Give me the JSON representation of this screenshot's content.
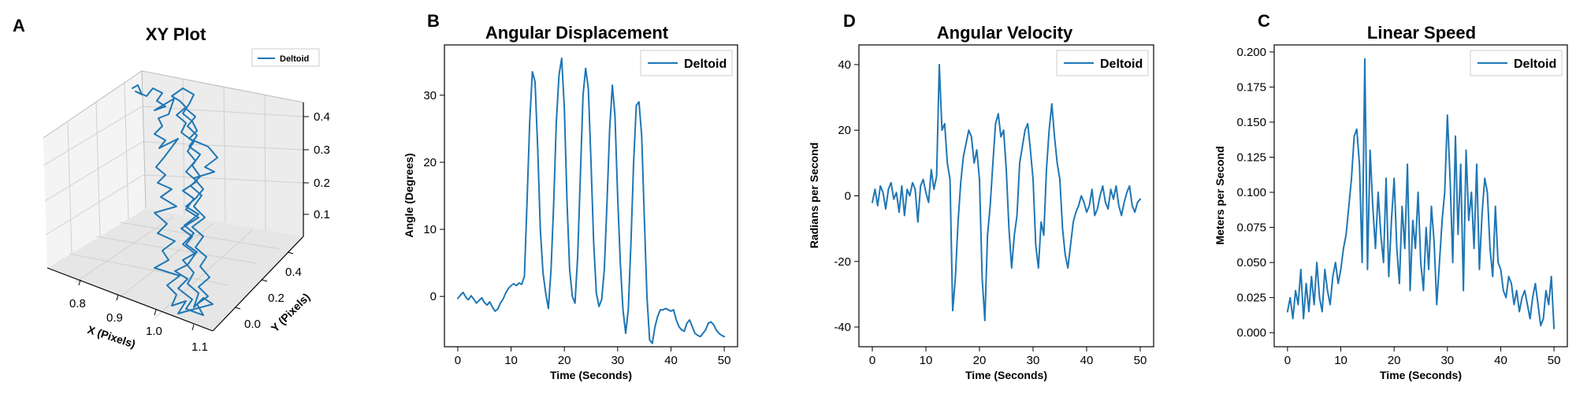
{
  "colors": {
    "series": "#1f77b4",
    "pane": "#f2f2f2",
    "grid": "#d6d6d6"
  },
  "panel_letters": {
    "a": "A",
    "b": "B",
    "c": "C",
    "d": "D"
  },
  "chart_data": [
    {
      "type": "scatter",
      "panel": "A",
      "title": "XY Plot",
      "projection": "3d",
      "xlabel": "X (Pixels)",
      "ylabel": "Y (Pixels)",
      "zlabel": "",
      "x_ticks": [
        "0.8",
        "0.9",
        "1.0",
        "1.1"
      ],
      "y_ticks": [
        "0.0",
        "0.2",
        "0.4"
      ],
      "z_ticks": [
        "0.1",
        "0.2",
        "0.3",
        "0.4"
      ],
      "xlim": [
        0.72,
        1.12
      ],
      "ylim": [
        -0.1,
        0.55
      ],
      "zlim": [
        0.0,
        0.45
      ],
      "legend": [
        "Deltoid"
      ],
      "legend_position": "top-right",
      "grid": true,
      "series": [
        {
          "name": "Deltoid",
          "path": "trajectory from z≈0.0 to z≈0.42, x≈0.95–1.08, y≈0.0–0.4"
        }
      ]
    },
    {
      "type": "line",
      "panel": "B",
      "title": "Angular Displacement",
      "xlabel": "Time (Seconds)",
      "ylabel": "Angle (Degrees)",
      "xlim": [
        -2.5,
        52.5
      ],
      "ylim": [
        -7.5,
        37.5
      ],
      "x_ticks": [
        0,
        10,
        20,
        30,
        40,
        50
      ],
      "y_ticks": [
        0,
        10,
        20,
        30
      ],
      "legend": [
        "Deltoid"
      ],
      "legend_position": "top-right",
      "grid": false,
      "series": [
        {
          "name": "Deltoid",
          "x": [
            0,
            0.5,
            1,
            1.5,
            2,
            2.5,
            3,
            3.5,
            4,
            4.5,
            5,
            5.5,
            6,
            6.5,
            7,
            7.5,
            8,
            8.5,
            9,
            9.5,
            10,
            10.5,
            11,
            11.5,
            12,
            12.5,
            13,
            13.5,
            14,
            14.5,
            15,
            15.5,
            16,
            16.5,
            17,
            17.5,
            18,
            18.5,
            19,
            19.5,
            20,
            20.5,
            21,
            21.5,
            22,
            22.5,
            23,
            23.5,
            24,
            24.5,
            25,
            25.5,
            26,
            26.5,
            27,
            27.5,
            28,
            28.5,
            29,
            29.5,
            30,
            30.5,
            31,
            31.5,
            32,
            32.5,
            33,
            33.5,
            34,
            34.5,
            35,
            35.5,
            36,
            36.5,
            37,
            37.5,
            38,
            38.5,
            39,
            39.5,
            40,
            40.5,
            41,
            41.5,
            42,
            42.5,
            43,
            43.5,
            44,
            44.5,
            45,
            45.5,
            46,
            46.5,
            47,
            47.5,
            48,
            48.5,
            49,
            49.5,
            50
          ],
          "y": [
            -0.3,
            0.2,
            0.6,
            -0.1,
            -0.5,
            0.1,
            -0.4,
            -1.0,
            -0.6,
            -0.2,
            -0.9,
            -1.3,
            -0.8,
            -1.6,
            -2.2,
            -1.9,
            -1.0,
            -0.4,
            0.5,
            1.2,
            1.6,
            1.9,
            1.6,
            2.0,
            1.8,
            3.0,
            14.0,
            26.0,
            33.5,
            32.0,
            22.0,
            10.0,
            3.5,
            0.5,
            -1.8,
            4.0,
            14.0,
            26.0,
            33.0,
            35.5,
            28.0,
            14.0,
            4.0,
            0.0,
            -1.0,
            6.0,
            18.0,
            30.0,
            34.0,
            31.0,
            20.0,
            8.0,
            0.5,
            -1.5,
            -0.5,
            4.0,
            14.0,
            25.0,
            31.5,
            27.0,
            15.0,
            5.0,
            -2.0,
            -5.5,
            -2.0,
            8.0,
            20.0,
            28.5,
            29.0,
            24.0,
            12.0,
            0.0,
            -6.5,
            -7.0,
            -4.5,
            -3.0,
            -2.0,
            -2.0,
            -1.8,
            -2.0,
            -2.2,
            -2.0,
            -3.5,
            -4.5,
            -5.0,
            -5.2,
            -4.0,
            -3.5,
            -4.5,
            -5.5,
            -5.8,
            -6.0,
            -5.5,
            -5.0,
            -4.0,
            -3.8,
            -4.2,
            -5.0,
            -5.5,
            -5.8,
            -6.0
          ]
        }
      ]
    },
    {
      "type": "line",
      "panel": "D",
      "title": "Angular Velocity",
      "xlabel": "Time (Seconds)",
      "ylabel": "Radians per Second",
      "xlim": [
        -2.5,
        52.5
      ],
      "ylim": [
        -46,
        46
      ],
      "x_ticks": [
        0,
        10,
        20,
        30,
        40,
        50
      ],
      "y_ticks": [
        -40,
        -20,
        0,
        20,
        40
      ],
      "legend": [
        "Deltoid"
      ],
      "legend_position": "top-right",
      "grid": false,
      "series": [
        {
          "name": "Deltoid",
          "x": [
            0,
            0.5,
            1,
            1.5,
            2,
            2.5,
            3,
            3.5,
            4,
            4.5,
            5,
            5.5,
            6,
            6.5,
            7,
            7.5,
            8,
            8.5,
            9,
            9.5,
            10,
            10.5,
            11,
            11.5,
            12,
            12.5,
            13,
            13.5,
            14,
            14.5,
            15,
            15.5,
            16,
            16.5,
            17,
            17.5,
            18,
            18.5,
            19,
            19.5,
            20,
            20.5,
            21,
            21.5,
            22,
            22.5,
            23,
            23.5,
            24,
            24.5,
            25,
            25.5,
            26,
            26.5,
            27,
            27.5,
            28,
            28.5,
            29,
            29.5,
            30,
            30.5,
            31,
            31.5,
            32,
            32.5,
            33,
            33.5,
            34,
            34.5,
            35,
            35.5,
            36,
            36.5,
            37,
            37.5,
            38,
            38.5,
            39,
            39.5,
            40,
            40.5,
            41,
            41.5,
            42,
            42.5,
            43,
            43.5,
            44,
            44.5,
            45,
            45.5,
            46,
            46.5,
            47,
            47.5,
            48,
            48.5,
            49,
            49.5,
            50
          ],
          "y": [
            -2,
            2,
            -3,
            3,
            1,
            -4,
            2,
            4,
            -1,
            1,
            -5,
            3,
            -6,
            2,
            0,
            4,
            2,
            -8,
            3,
            5,
            1,
            -2,
            8,
            2,
            6,
            40,
            20,
            22,
            10,
            5,
            -35,
            -25,
            -8,
            4,
            12,
            16,
            20,
            18,
            10,
            14,
            5,
            -25,
            -38,
            -12,
            -3,
            10,
            22,
            25,
            18,
            20,
            8,
            -10,
            -22,
            -12,
            -6,
            10,
            15,
            20,
            22,
            14,
            5,
            -15,
            -22,
            -8,
            -12,
            8,
            20,
            28,
            18,
            10,
            5,
            -10,
            -18,
            -22,
            -15,
            -8,
            -5,
            -3,
            0,
            -2,
            -5,
            -3,
            2,
            -6,
            -4,
            0,
            3,
            -2,
            -4,
            2,
            -1,
            3,
            -3,
            -6,
            -2,
            1,
            3,
            -3,
            -5,
            -2,
            -1
          ]
        }
      ]
    },
    {
      "type": "line",
      "panel": "C",
      "title": "Linear Speed",
      "xlabel": "Time (Seconds)",
      "ylabel": "Meters per Second",
      "xlim": [
        -2.5,
        52.5
      ],
      "ylim": [
        -0.01,
        0.205
      ],
      "x_ticks": [
        0,
        10,
        20,
        30,
        40,
        50
      ],
      "y_ticks": [
        "0.000",
        "0.025",
        "0.050",
        "0.075",
        "0.100",
        "0.125",
        "0.150",
        "0.175",
        "0.200"
      ],
      "legend": [
        "Deltoid"
      ],
      "legend_position": "top-right",
      "grid": false,
      "series": [
        {
          "name": "Deltoid",
          "x": [
            0,
            0.5,
            1,
            1.5,
            2,
            2.5,
            3,
            3.5,
            4,
            4.5,
            5,
            5.5,
            6,
            6.5,
            7,
            7.5,
            8,
            8.5,
            9,
            9.5,
            10,
            10.5,
            11,
            11.5,
            12,
            12.5,
            13,
            13.5,
            14,
            14.5,
            15,
            15.5,
            16,
            16.5,
            17,
            17.5,
            18,
            18.5,
            19,
            19.5,
            20,
            20.5,
            21,
            21.5,
            22,
            22.5,
            23,
            23.5,
            24,
            24.5,
            25,
            25.5,
            26,
            26.5,
            27,
            27.5,
            28,
            28.5,
            29,
            29.5,
            30,
            30.5,
            31,
            31.5,
            32,
            32.5,
            33,
            33.5,
            34,
            34.5,
            35,
            35.5,
            36,
            36.5,
            37,
            37.5,
            38,
            38.5,
            39,
            39.5,
            40,
            40.5,
            41,
            41.5,
            42,
            42.5,
            43,
            43.5,
            44,
            44.5,
            45,
            45.5,
            46,
            46.5,
            47,
            47.5,
            48,
            48.5,
            49,
            49.5,
            50
          ],
          "y": [
            0.015,
            0.025,
            0.01,
            0.03,
            0.02,
            0.045,
            0.01,
            0.035,
            0.015,
            0.04,
            0.02,
            0.05,
            0.025,
            0.015,
            0.045,
            0.03,
            0.02,
            0.04,
            0.05,
            0.035,
            0.045,
            0.06,
            0.07,
            0.09,
            0.11,
            0.14,
            0.145,
            0.12,
            0.05,
            0.195,
            0.045,
            0.13,
            0.09,
            0.06,
            0.1,
            0.07,
            0.05,
            0.11,
            0.04,
            0.08,
            0.11,
            0.06,
            0.035,
            0.09,
            0.06,
            0.12,
            0.03,
            0.08,
            0.06,
            0.1,
            0.05,
            0.03,
            0.075,
            0.045,
            0.09,
            0.065,
            0.02,
            0.05,
            0.08,
            0.1,
            0.155,
            0.11,
            0.05,
            0.14,
            0.07,
            0.12,
            0.03,
            0.13,
            0.08,
            0.1,
            0.06,
            0.12,
            0.045,
            0.085,
            0.11,
            0.1,
            0.06,
            0.04,
            0.09,
            0.05,
            0.045,
            0.03,
            0.025,
            0.04,
            0.035,
            0.02,
            0.03,
            0.015,
            0.025,
            0.03,
            0.02,
            0.01,
            0.025,
            0.035,
            0.02,
            0.005,
            0.01,
            0.03,
            0.02,
            0.04,
            0.003
          ]
        }
      ]
    }
  ]
}
